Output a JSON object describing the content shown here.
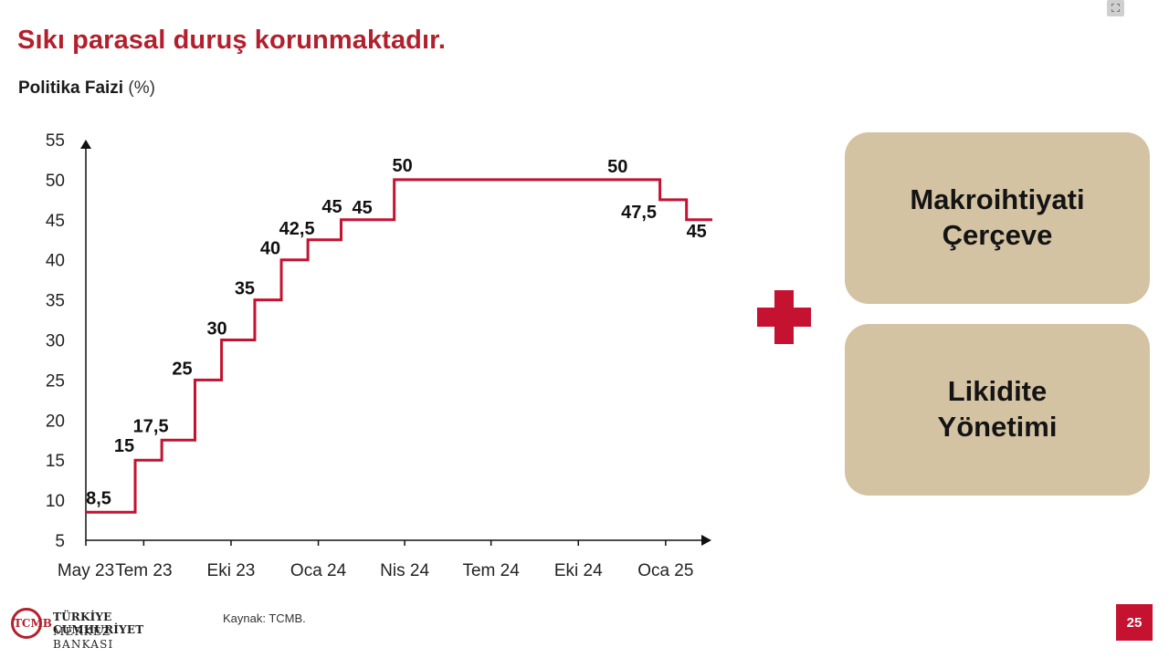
{
  "slide": {
    "title": "Sıkı parasal duruş korunmaktadır.",
    "subtitle_bold": "Politika Faizi",
    "subtitle_unit": "(%)",
    "source": "Kaynak: TCMB.",
    "page_number": "25",
    "accent_color": "#b3202d"
  },
  "logo": {
    "line1": "TÜRKİYE CUMHURİYET",
    "line2": "MERKEZ BANKASI",
    "mark": "TCMB"
  },
  "cards": {
    "card1_line1": "Makroihtiyati",
    "card1_line2": "Çerçeve",
    "card2_line1": "Likidite",
    "card2_line2": "Yönetimi",
    "color": "#d4c3a3"
  },
  "plus_color": "#c41230",
  "chart_data": {
    "type": "line",
    "step": true,
    "title": "",
    "xlabel": "",
    "ylabel": "",
    "ylim": [
      5,
      55
    ],
    "yticks": [
      "5",
      "10",
      "15",
      "20",
      "25",
      "30",
      "35",
      "40",
      "45",
      "50",
      "55"
    ],
    "xtick_labels": [
      "May 23",
      "Tem 23",
      "Eki 23",
      "Oca 24",
      "Nis 24",
      "Tem 24",
      "Eki 24",
      "Oca 25"
    ],
    "xtick_dates": [
      "2023-05-01",
      "2023-07-01",
      "2023-10-01",
      "2024-01-01",
      "2024-04-01",
      "2024-07-01",
      "2024-10-01",
      "2025-01-01"
    ],
    "x_start": "2023-05-01",
    "x_end": "2025-01-31",
    "line_color": "#c41230",
    "series": [
      {
        "points": [
          {
            "x": "2023-05-01",
            "y": 8.5,
            "label": "8,5"
          },
          {
            "x": "2023-06-22",
            "y": 15,
            "label": "15"
          },
          {
            "x": "2023-07-20",
            "y": 17.5,
            "label": "17,5"
          },
          {
            "x": "2023-08-24",
            "y": 25,
            "label": "25"
          },
          {
            "x": "2023-09-21",
            "y": 30,
            "label": "30"
          },
          {
            "x": "2023-10-26",
            "y": 35,
            "label": "35"
          },
          {
            "x": "2023-11-23",
            "y": 40,
            "label": "40"
          },
          {
            "x": "2023-12-21",
            "y": 42.5,
            "label": "42,5"
          },
          {
            "x": "2024-01-25",
            "y": 45,
            "label": "45"
          },
          {
            "x": "2024-02-22",
            "y": 45,
            "label": "45"
          },
          {
            "x": "2024-03-21",
            "y": 50,
            "label": "50"
          },
          {
            "x": "2024-11-21",
            "y": 50,
            "label": "50"
          },
          {
            "x": "2024-12-26",
            "y": 47.5,
            "label": "47,5"
          },
          {
            "x": "2025-01-23",
            "y": 45,
            "label": "45"
          }
        ]
      }
    ]
  }
}
